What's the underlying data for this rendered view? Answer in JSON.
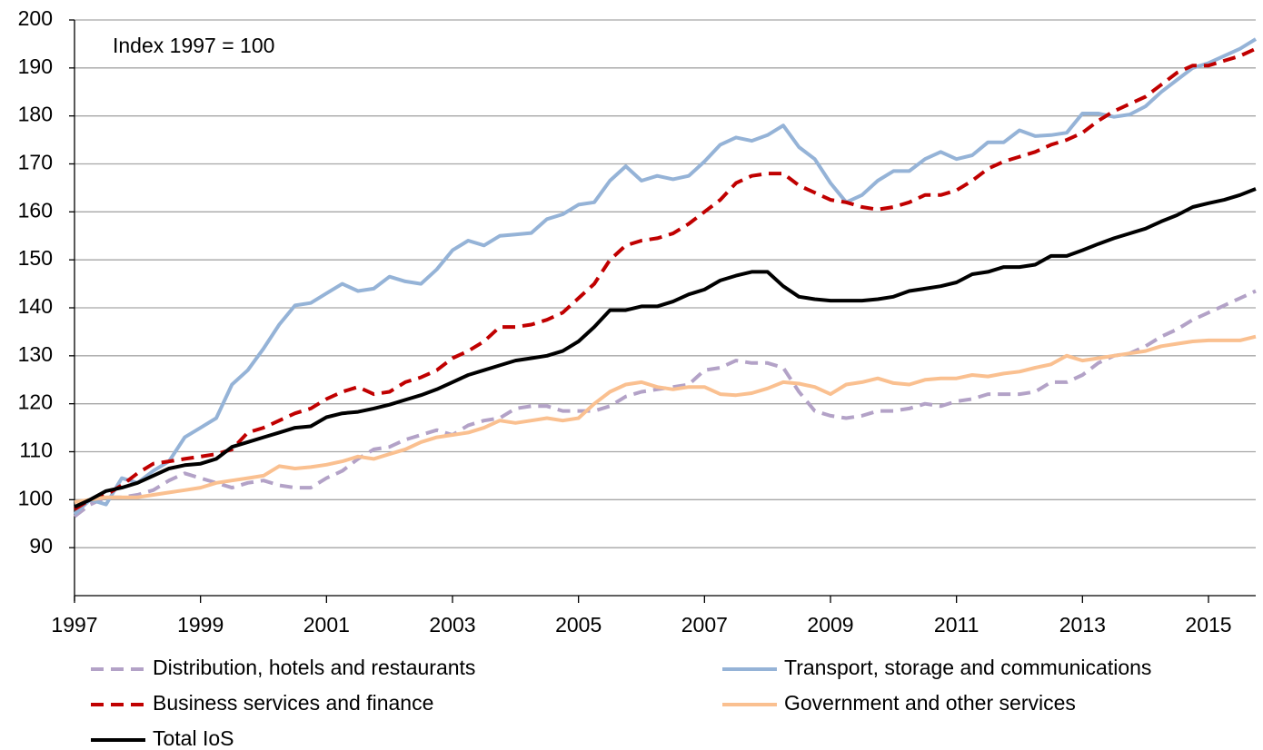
{
  "chart_data": {
    "type": "line",
    "annotation": "Index 1997 = 100",
    "x": [
      1997,
      1997.25,
      1997.5,
      1997.75,
      1998,
      1998.25,
      1998.5,
      1998.75,
      1999,
      1999.25,
      1999.5,
      1999.75,
      2000,
      2000.25,
      2000.5,
      2000.75,
      2001,
      2001.25,
      2001.5,
      2001.75,
      2002,
      2002.25,
      2002.5,
      2002.75,
      2003,
      2003.25,
      2003.5,
      2003.75,
      2004,
      2004.25,
      2004.5,
      2004.75,
      2005,
      2005.25,
      2005.5,
      2005.75,
      2006,
      2006.25,
      2006.5,
      2006.75,
      2007,
      2007.25,
      2007.5,
      2007.75,
      2008,
      2008.25,
      2008.5,
      2008.75,
      2009,
      2009.25,
      2009.5,
      2009.75,
      2010,
      2010.25,
      2010.5,
      2010.75,
      2011,
      2011.25,
      2011.5,
      2011.75,
      2012,
      2012.25,
      2012.5,
      2012.75,
      2013,
      2013.25,
      2013.5,
      2013.75,
      2014,
      2014.25,
      2014.5,
      2014.75,
      2015,
      2015.25,
      2015.5,
      2015.75
    ],
    "xlim": [
      1997,
      2015.75
    ],
    "xticks": [
      1997,
      1999,
      2001,
      2003,
      2005,
      2007,
      2009,
      2011,
      2013,
      2015
    ],
    "ylim": [
      80,
      200
    ],
    "yticks": [
      90,
      100,
      110,
      120,
      130,
      140,
      150,
      160,
      170,
      180,
      190,
      200
    ],
    "grid": true,
    "series": [
      {
        "name": "Distribution, hotels and restaurants",
        "color": "#b3a2c7",
        "style": "dashed",
        "values": [
          96.5,
          99,
          100.5,
          100.5,
          101,
          102,
          104,
          105.5,
          104.5,
          103.5,
          102.5,
          103.5,
          104,
          103,
          102.5,
          102.5,
          104.5,
          106,
          108.5,
          110.5,
          111,
          112.5,
          113.5,
          114.5,
          113.5,
          115.5,
          116.5,
          117,
          119,
          119.5,
          119.5,
          118.5,
          118.5,
          118.5,
          119.5,
          121.5,
          122.5,
          123,
          123.5,
          124,
          127,
          127.5,
          129,
          128.5,
          128.5,
          127.5,
          122.5,
          118.5,
          117.5,
          117,
          117.5,
          118.5,
          118.5,
          119,
          120,
          119.5,
          120.5,
          121,
          122,
          122,
          122,
          122.5,
          124.5,
          124.5,
          126,
          128.5,
          130,
          130.5,
          132,
          134,
          135.5,
          137.5,
          139,
          140.5,
          142,
          143.5
        ]
      },
      {
        "name": "Transport, storage and communications",
        "color": "#95b3d7",
        "style": "solid",
        "values": [
          97,
          100,
          99,
          104.5,
          103.5,
          106,
          108,
          113,
          115,
          117,
          124,
          127,
          131.5,
          136.5,
          140.5,
          141,
          143,
          145,
          143.5,
          144,
          146.5,
          145.5,
          145,
          148,
          152,
          154,
          153,
          155,
          155.3,
          155.6,
          158.5,
          159.5,
          161.5,
          162,
          166.5,
          169.5,
          166.5,
          167.5,
          166.8,
          167.5,
          170.5,
          174,
          175.5,
          174.8,
          176,
          178,
          173.5,
          171,
          166,
          162,
          163.5,
          166.5,
          168.5,
          168.5,
          171,
          172.5,
          171,
          171.8,
          174.5,
          174.5,
          177,
          175.8,
          176,
          176.5,
          180.5,
          180.5,
          179.8,
          180.3,
          182,
          185,
          187.5,
          190,
          191,
          192.5,
          194,
          196
        ]
      },
      {
        "name": "Business services and finance",
        "color": "#c00000",
        "style": "dashed",
        "values": [
          98,
          100,
          101,
          103,
          105.5,
          107.5,
          108,
          108.5,
          109,
          109.5,
          110.5,
          114,
          115,
          116.5,
          118,
          119,
          121,
          122.5,
          123.5,
          122,
          122.5,
          124.5,
          125.5,
          127,
          129.5,
          131,
          133,
          136,
          136,
          136.5,
          137.5,
          139,
          142,
          145,
          150,
          153,
          154,
          154.5,
          155.5,
          157.5,
          160,
          162.5,
          166,
          167.5,
          168,
          168,
          165.5,
          164,
          162.5,
          162,
          161,
          160.5,
          161,
          162,
          163.5,
          163.5,
          164.5,
          166.5,
          169,
          170.5,
          171.5,
          172.5,
          174,
          175,
          176.5,
          179,
          181,
          182.5,
          184,
          186.5,
          189,
          190.5,
          190.5,
          191.5,
          192.5,
          194
        ]
      },
      {
        "name": "Government and other services",
        "color": "#fac090",
        "style": "solid",
        "values": [
          99.5,
          100,
          100.5,
          100.5,
          100.5,
          101,
          101.5,
          102,
          102.5,
          103.5,
          104,
          104.5,
          105,
          107,
          106.5,
          106.8,
          107.3,
          108,
          109,
          108.5,
          109.5,
          110.5,
          112,
          113,
          113.5,
          114,
          115,
          116.5,
          116,
          116.5,
          117,
          116.5,
          117,
          120,
          122.5,
          124,
          124.5,
          123.5,
          123,
          123.5,
          123.5,
          122,
          121.8,
          122.2,
          123.2,
          124.5,
          124.2,
          123.5,
          122,
          124,
          124.5,
          125.3,
          124.3,
          124,
          125,
          125.3,
          125.3,
          126,
          125.7,
          126.3,
          126.7,
          127.5,
          128.2,
          130,
          129,
          129.5,
          130,
          130.5,
          131,
          132,
          132.5,
          133,
          133.2,
          133.2,
          133.2,
          134
        ]
      },
      {
        "name": "Total IoS",
        "color": "#000000",
        "style": "solid",
        "values": [
          98.5,
          100,
          101.8,
          102.5,
          103.5,
          105,
          106.5,
          107.2,
          107.5,
          108.5,
          111,
          112,
          113,
          114,
          115,
          115.3,
          117.2,
          118,
          118.3,
          119,
          119.8,
          120.8,
          121.8,
          123,
          124.5,
          126,
          127,
          128,
          129,
          129.5,
          130,
          131,
          133,
          136,
          139.5,
          139.5,
          140.3,
          140.3,
          141.3,
          142.8,
          143.8,
          145.7,
          146.7,
          147.5,
          147.5,
          144.5,
          142.3,
          141.8,
          141.5,
          141.5,
          141.5,
          141.8,
          142.3,
          143.5,
          144,
          144.5,
          145.3,
          147,
          147.5,
          148.5,
          148.5,
          149,
          150.8,
          150.8,
          152,
          153.3,
          154.5,
          155.5,
          156.5,
          158,
          159.3,
          161,
          161.8,
          162.5,
          163.5,
          164.8
        ]
      }
    ]
  }
}
